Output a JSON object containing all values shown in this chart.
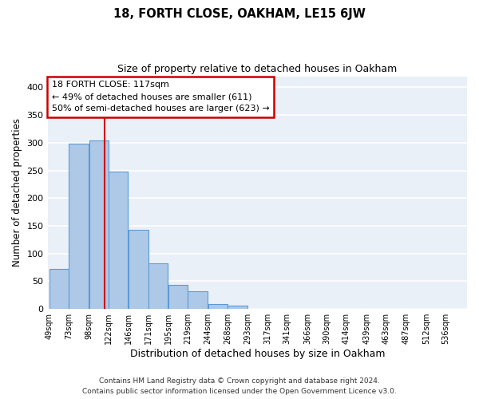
{
  "title": "18, FORTH CLOSE, OAKHAM, LE15 6JW",
  "subtitle": "Size of property relative to detached houses in Oakham",
  "xlabel": "Distribution of detached houses by size in Oakham",
  "ylabel": "Number of detached properties",
  "footnote1": "Contains HM Land Registry data © Crown copyright and database right 2024.",
  "footnote2": "Contains public sector information licensed under the Open Government Licence v3.0.",
  "bar_labels": [
    "49sqm",
    "73sqm",
    "98sqm",
    "122sqm",
    "146sqm",
    "171sqm",
    "195sqm",
    "219sqm",
    "244sqm",
    "268sqm",
    "293sqm",
    "317sqm",
    "341sqm",
    "366sqm",
    "390sqm",
    "414sqm",
    "439sqm",
    "463sqm",
    "487sqm",
    "512sqm",
    "536sqm"
  ],
  "bar_values": [
    73,
    298,
    304,
    248,
    143,
    82,
    43,
    32,
    9,
    6,
    0,
    0,
    0,
    0,
    0,
    1,
    0,
    0,
    0,
    0,
    1
  ],
  "bar_color": "#aec9e8",
  "bar_edge_color": "#5b9bd5",
  "property_line_x": 117,
  "property_line_label": "18 FORTH CLOSE: 117sqm",
  "annotation_line1": "← 49% of detached houses are smaller (611)",
  "annotation_line2": "50% of semi-detached houses are larger (623) →",
  "annotation_box_color": "#ffffff",
  "annotation_box_edge_color": "#cc0000",
  "property_line_color": "#cc0000",
  "ylim": [
    0,
    420
  ],
  "yticks": [
    0,
    50,
    100,
    150,
    200,
    250,
    300,
    350,
    400
  ],
  "bin_edges": [
    49,
    73,
    98,
    122,
    146,
    171,
    195,
    219,
    244,
    268,
    293,
    317,
    341,
    366,
    390,
    414,
    439,
    463,
    487,
    512,
    536,
    560
  ],
  "figsize": [
    6.0,
    5.0
  ],
  "dpi": 100
}
